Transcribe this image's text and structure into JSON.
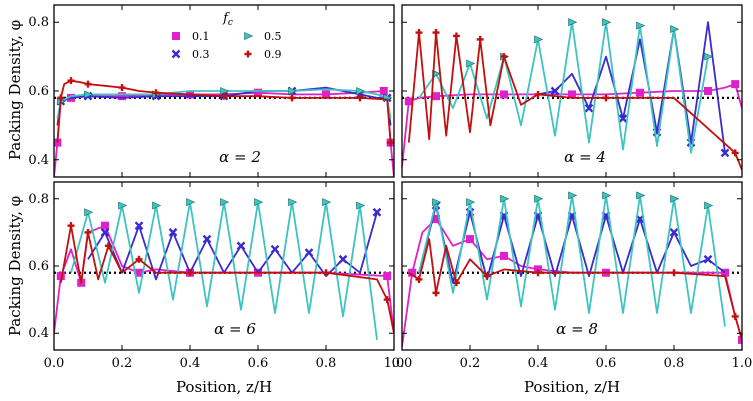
{
  "figure": {
    "xlabel": "Position, z/H",
    "ylabel": "Packing Density, φ",
    "legend": {
      "title": "f_c",
      "entries": [
        {
          "label": "0.1",
          "color": "#e020c8",
          "marker": "square"
        },
        {
          "label": "0.5",
          "color": "#3ec4c0",
          "marker": "triangle-right"
        },
        {
          "label": "0.3",
          "color": "#3a2ad0",
          "marker": "x"
        },
        {
          "label": "0.9",
          "color": "#c01010",
          "marker": "plus"
        }
      ]
    },
    "reference_line": {
      "phi": 0.58,
      "style": "dotted",
      "color": "#000000"
    }
  },
  "chart_data": [
    {
      "type": "line",
      "alpha_label": "α = 2",
      "alpha": 2,
      "xlim": [
        0.0,
        1.0
      ],
      "ylim": [
        0.35,
        0.85
      ],
      "xticks": [
        0.0,
        0.2,
        0.4,
        0.6,
        0.8,
        1.0
      ],
      "yticks": [
        0.4,
        0.6,
        0.8
      ],
      "series": [
        {
          "name": "0.1",
          "color": "#e020c8",
          "marker": "square",
          "x": [
            0.0,
            0.01,
            0.02,
            0.05,
            0.1,
            0.2,
            0.3,
            0.4,
            0.5,
            0.6,
            0.7,
            0.8,
            0.9,
            0.97,
            0.98,
            0.99,
            1.0
          ],
          "y": [
            0.35,
            0.45,
            0.57,
            0.58,
            0.585,
            0.585,
            0.59,
            0.59,
            0.59,
            0.595,
            0.59,
            0.59,
            0.595,
            0.6,
            0.58,
            0.45,
            0.35
          ]
        },
        {
          "name": "0.3",
          "color": "#3a2ad0",
          "marker": "x",
          "x": [
            0.01,
            0.02,
            0.05,
            0.1,
            0.2,
            0.3,
            0.4,
            0.5,
            0.6,
            0.7,
            0.8,
            0.9,
            0.95,
            0.98,
            0.99
          ],
          "y": [
            0.5,
            0.57,
            0.58,
            0.585,
            0.58,
            0.585,
            0.585,
            0.585,
            0.6,
            0.6,
            0.61,
            0.59,
            0.58,
            0.58,
            0.5
          ]
        },
        {
          "name": "0.5",
          "color": "#3ec4c0",
          "marker": "triangle-right",
          "x": [
            0.01,
            0.02,
            0.05,
            0.1,
            0.2,
            0.3,
            0.4,
            0.5,
            0.6,
            0.7,
            0.8,
            0.9,
            0.95,
            0.98,
            0.99
          ],
          "y": [
            0.52,
            0.57,
            0.585,
            0.59,
            0.59,
            0.59,
            0.6,
            0.6,
            0.6,
            0.6,
            0.605,
            0.6,
            0.59,
            0.58,
            0.52
          ]
        },
        {
          "name": "0.9",
          "color": "#c01010",
          "marker": "plus",
          "x": [
            0.01,
            0.02,
            0.03,
            0.05,
            0.08,
            0.1,
            0.15,
            0.2,
            0.25,
            0.3,
            0.4,
            0.5,
            0.6,
            0.7,
            0.8,
            0.9,
            0.98,
            0.99
          ],
          "y": [
            0.45,
            0.58,
            0.62,
            0.63,
            0.625,
            0.62,
            0.615,
            0.61,
            0.6,
            0.595,
            0.59,
            0.585,
            0.585,
            0.58,
            0.58,
            0.58,
            0.575,
            0.45
          ]
        }
      ]
    },
    {
      "type": "line",
      "alpha_label": "α = 4",
      "alpha": 4,
      "xlim": [
        0.0,
        1.0
      ],
      "ylim": [
        0.35,
        0.85
      ],
      "xticks": [
        0.0,
        0.2,
        0.4,
        0.6,
        0.8,
        1.0
      ],
      "yticks": [
        0.4,
        0.6,
        0.8
      ],
      "series": [
        {
          "name": "0.1",
          "color": "#e020c8",
          "marker": "square",
          "x": [
            0.0,
            0.02,
            0.05,
            0.1,
            0.2,
            0.3,
            0.4,
            0.5,
            0.6,
            0.7,
            0.8,
            0.9,
            0.95,
            0.98,
            1.0
          ],
          "y": [
            0.38,
            0.57,
            0.58,
            0.585,
            0.59,
            0.59,
            0.59,
            0.59,
            0.59,
            0.595,
            0.6,
            0.6,
            0.61,
            0.62,
            0.55
          ]
        },
        {
          "name": "0.3",
          "color": "#3a2ad0",
          "marker": "x",
          "x": [
            0.4,
            0.45,
            0.5,
            0.55,
            0.6,
            0.65,
            0.7,
            0.75,
            0.8,
            0.85,
            0.9,
            0.95
          ],
          "y": [
            0.59,
            0.6,
            0.65,
            0.55,
            0.7,
            0.52,
            0.75,
            0.48,
            0.78,
            0.45,
            0.8,
            0.42
          ]
        },
        {
          "name": "0.5",
          "color": "#3ec4c0",
          "marker": "triangle-right",
          "x": [
            0.05,
            0.1,
            0.15,
            0.2,
            0.25,
            0.3,
            0.35,
            0.4,
            0.45,
            0.5,
            0.55,
            0.6,
            0.65,
            0.7,
            0.75,
            0.8,
            0.85,
            0.9
          ],
          "y": [
            0.58,
            0.65,
            0.55,
            0.68,
            0.52,
            0.7,
            0.5,
            0.75,
            0.47,
            0.8,
            0.45,
            0.8,
            0.43,
            0.79,
            0.44,
            0.78,
            0.42,
            0.7
          ]
        },
        {
          "name": "0.9",
          "color": "#c01010",
          "marker": "plus",
          "x": [
            0.02,
            0.05,
            0.08,
            0.1,
            0.13,
            0.16,
            0.2,
            0.23,
            0.26,
            0.3,
            0.35,
            0.4,
            0.5,
            0.6,
            0.8,
            0.98,
            1.0
          ],
          "y": [
            0.45,
            0.77,
            0.46,
            0.77,
            0.47,
            0.76,
            0.48,
            0.75,
            0.5,
            0.7,
            0.56,
            0.59,
            0.58,
            0.58,
            0.58,
            0.42,
            0.37
          ]
        }
      ]
    },
    {
      "type": "line",
      "alpha_label": "α = 6",
      "alpha": 6,
      "xlim": [
        0.0,
        1.0
      ],
      "ylim": [
        0.35,
        0.85
      ],
      "xticks": [
        0.0,
        0.2,
        0.4,
        0.6,
        0.8,
        1.0
      ],
      "yticks": [
        0.4,
        0.6,
        0.8
      ],
      "series": [
        {
          "name": "0.1",
          "color": "#e020c8",
          "marker": "square",
          "x": [
            0.0,
            0.02,
            0.05,
            0.08,
            0.1,
            0.15,
            0.2,
            0.25,
            0.3,
            0.4,
            0.5,
            0.6,
            0.8,
            0.98,
            1.0
          ],
          "y": [
            0.4,
            0.57,
            0.65,
            0.55,
            0.7,
            0.72,
            0.6,
            0.58,
            0.59,
            0.58,
            0.58,
            0.58,
            0.58,
            0.57,
            0.4
          ]
        },
        {
          "name": "0.3",
          "color": "#3a2ad0",
          "marker": "x",
          "x": [
            0.1,
            0.15,
            0.2,
            0.25,
            0.3,
            0.35,
            0.4,
            0.45,
            0.5,
            0.55,
            0.6,
            0.65,
            0.7,
            0.75,
            0.8,
            0.85,
            0.9,
            0.95
          ],
          "y": [
            0.62,
            0.7,
            0.58,
            0.72,
            0.56,
            0.7,
            0.58,
            0.68,
            0.58,
            0.66,
            0.58,
            0.65,
            0.58,
            0.64,
            0.57,
            0.62,
            0.58,
            0.76
          ]
        },
        {
          "name": "0.5",
          "color": "#3ec4c0",
          "marker": "triangle-right",
          "x": [
            0.05,
            0.1,
            0.15,
            0.2,
            0.25,
            0.3,
            0.35,
            0.4,
            0.45,
            0.5,
            0.55,
            0.6,
            0.65,
            0.7,
            0.75,
            0.8,
            0.85,
            0.9,
            0.95
          ],
          "y": [
            0.58,
            0.76,
            0.55,
            0.78,
            0.52,
            0.78,
            0.5,
            0.79,
            0.48,
            0.79,
            0.47,
            0.79,
            0.46,
            0.79,
            0.46,
            0.79,
            0.45,
            0.78,
            0.38
          ]
        },
        {
          "name": "0.9",
          "color": "#c01010",
          "marker": "plus",
          "x": [
            0.02,
            0.05,
            0.08,
            0.1,
            0.13,
            0.16,
            0.2,
            0.25,
            0.3,
            0.4,
            0.6,
            0.8,
            0.95,
            0.98,
            1.0
          ],
          "y": [
            0.55,
            0.72,
            0.55,
            0.7,
            0.56,
            0.66,
            0.58,
            0.62,
            0.58,
            0.58,
            0.58,
            0.58,
            0.56,
            0.5,
            0.4
          ]
        }
      ]
    },
    {
      "type": "line",
      "alpha_label": "α = 8",
      "alpha": 8,
      "xlim": [
        0.0,
        1.0
      ],
      "ylim": [
        0.35,
        0.85
      ],
      "xticks": [
        0.0,
        0.2,
        0.4,
        0.6,
        0.8,
        1.0
      ],
      "yticks": [
        0.4,
        0.6,
        0.8
      ],
      "series": [
        {
          "name": "0.1",
          "color": "#e020c8",
          "marker": "square",
          "x": [
            0.0,
            0.03,
            0.06,
            0.1,
            0.15,
            0.2,
            0.25,
            0.3,
            0.35,
            0.4,
            0.5,
            0.6,
            0.8,
            0.95,
            0.98,
            1.0
          ],
          "y": [
            0.36,
            0.58,
            0.7,
            0.74,
            0.66,
            0.68,
            0.62,
            0.63,
            0.6,
            0.59,
            0.58,
            0.58,
            0.58,
            0.58,
            0.45,
            0.38
          ]
        },
        {
          "name": "0.3",
          "color": "#3a2ad0",
          "marker": "x",
          "x": [
            0.05,
            0.1,
            0.15,
            0.2,
            0.25,
            0.3,
            0.35,
            0.4,
            0.45,
            0.5,
            0.55,
            0.6,
            0.65,
            0.7,
            0.75,
            0.8,
            0.85,
            0.9,
            0.95
          ],
          "y": [
            0.58,
            0.78,
            0.55,
            0.76,
            0.56,
            0.75,
            0.57,
            0.75,
            0.57,
            0.75,
            0.57,
            0.75,
            0.58,
            0.74,
            0.58,
            0.7,
            0.6,
            0.62,
            0.58
          ]
        },
        {
          "name": "0.5",
          "color": "#3ec4c0",
          "marker": "triangle-right",
          "x": [
            0.05,
            0.1,
            0.15,
            0.2,
            0.25,
            0.3,
            0.35,
            0.4,
            0.45,
            0.5,
            0.55,
            0.6,
            0.65,
            0.7,
            0.75,
            0.8,
            0.85,
            0.9,
            0.95
          ],
          "y": [
            0.58,
            0.79,
            0.52,
            0.79,
            0.5,
            0.8,
            0.48,
            0.8,
            0.47,
            0.81,
            0.46,
            0.81,
            0.46,
            0.81,
            0.46,
            0.8,
            0.46,
            0.78,
            0.42
          ]
        },
        {
          "name": "0.9",
          "color": "#c01010",
          "marker": "plus",
          "x": [
            0.02,
            0.05,
            0.08,
            0.1,
            0.13,
            0.16,
            0.2,
            0.25,
            0.3,
            0.4,
            0.6,
            0.8,
            0.95,
            0.98,
            1.0
          ],
          "y": [
            0.58,
            0.56,
            0.68,
            0.52,
            0.66,
            0.55,
            0.62,
            0.57,
            0.59,
            0.58,
            0.58,
            0.58,
            0.57,
            0.45,
            0.38
          ]
        }
      ]
    }
  ]
}
